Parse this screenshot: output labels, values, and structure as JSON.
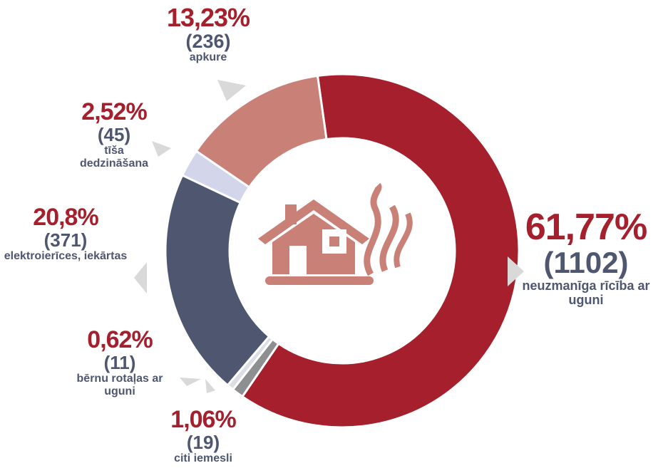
{
  "chart_data": {
    "type": "pie",
    "categories": [
      "neuzmanīga rīcība ar uguni",
      "citi iemesli",
      "bērnu rotaļas ar uguni",
      "elektroierīces, iekārtas",
      "tīša dedzināšana",
      "apkure"
    ],
    "values": [
      61.77,
      1.06,
      0.62,
      20.8,
      2.52,
      13.23
    ],
    "value_labels": [
      "61,77%",
      "1,06%",
      "0,62%",
      "20,8%",
      "2,52%",
      "13,23%"
    ],
    "counts": [
      1102,
      19,
      11,
      371,
      45,
      236
    ],
    "count_labels": [
      "(1102)",
      "(19)",
      "(11)",
      "(371)",
      "(45)",
      "(236)"
    ],
    "colors": [
      "#a51f2d",
      "#8e8f91",
      "#dcdde6",
      "#4f5670",
      "#d3d6ea",
      "#c98077"
    ],
    "donut": true
  }
}
